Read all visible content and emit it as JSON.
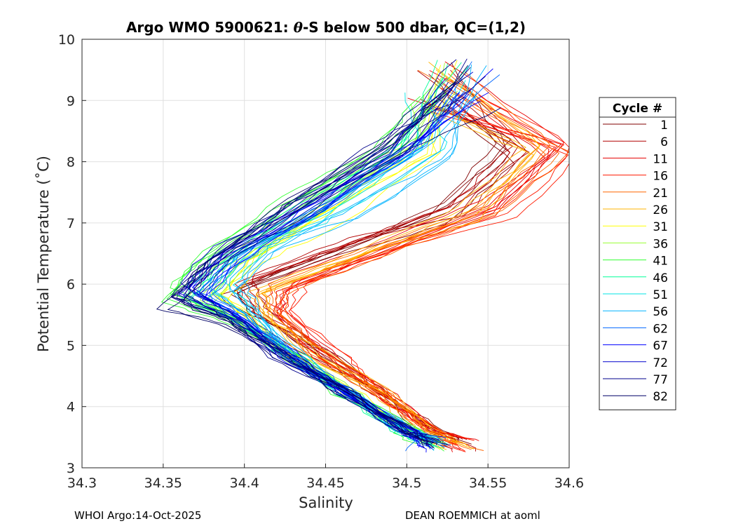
{
  "chart_data": {
    "type": "line",
    "title": "Argo WMO 5900621: θ-S below 500 dbar,  QC=(1,2)",
    "xlabel": "Salinity",
    "ylabel": "Potential Temperature (˚C)",
    "xlim": [
      34.3,
      34.6
    ],
    "ylim": [
      3,
      10
    ],
    "xticks": [
      34.3,
      34.35,
      34.4,
      34.45,
      34.5,
      34.55,
      34.6
    ],
    "xtick_labels": [
      "34.3",
      "34.35",
      "34.4",
      "34.45",
      "34.5",
      "34.55",
      "34.6"
    ],
    "yticks": [
      3,
      4,
      5,
      6,
      7,
      8,
      9,
      10
    ],
    "ytick_labels": [
      "3",
      "4",
      "5",
      "6",
      "7",
      "8",
      "9",
      "10"
    ],
    "grid": true,
    "legend_title": "Cycle #",
    "legend_position": "right",
    "series": [
      {
        "name": "1",
        "color": "#800000",
        "sal_min": 34.395,
        "t_min": 5.9
      },
      {
        "name": "6",
        "color": "#b20000",
        "sal_min": 34.405,
        "t_min": 6.0
      },
      {
        "name": "11",
        "color": "#e60000",
        "sal_min": 34.425,
        "t_min": 6.0
      },
      {
        "name": "16",
        "color": "#ff1a00",
        "sal_min": 34.43,
        "t_min": 5.95
      },
      {
        "name": "21",
        "color": "#ff6600",
        "sal_min": 34.42,
        "t_min": 5.9
      },
      {
        "name": "26",
        "color": "#ffb300",
        "sal_min": 34.405,
        "t_min": 5.85
      },
      {
        "name": "31",
        "color": "#ffff00",
        "sal_min": 34.39,
        "t_min": 5.8
      },
      {
        "name": "36",
        "color": "#99ff33",
        "sal_min": 34.37,
        "t_min": 5.75
      },
      {
        "name": "41",
        "color": "#33ff33",
        "sal_min": 34.355,
        "t_min": 5.8
      },
      {
        "name": "46",
        "color": "#00ff99",
        "sal_min": 34.37,
        "t_min": 5.85
      },
      {
        "name": "51",
        "color": "#00e6e6",
        "sal_min": 34.385,
        "t_min": 5.9
      },
      {
        "name": "56",
        "color": "#00b3ff",
        "sal_min": 34.39,
        "t_min": 5.95
      },
      {
        "name": "62",
        "color": "#0066ff",
        "sal_min": 34.375,
        "t_min": 5.9
      },
      {
        "name": "67",
        "color": "#0000ff",
        "sal_min": 34.365,
        "t_min": 5.85
      },
      {
        "name": "72",
        "color": "#0000cc",
        "sal_min": 34.36,
        "t_min": 5.9
      },
      {
        "name": "77",
        "color": "#00008c",
        "sal_min": 34.365,
        "t_min": 5.85
      },
      {
        "name": "82",
        "color": "#000066",
        "sal_min": 34.36,
        "t_min": 5.6
      }
    ]
  },
  "footer": {
    "left": "WHOI Argo:14-Oct-2025",
    "right": "DEAN ROEMMICH at aoml"
  }
}
